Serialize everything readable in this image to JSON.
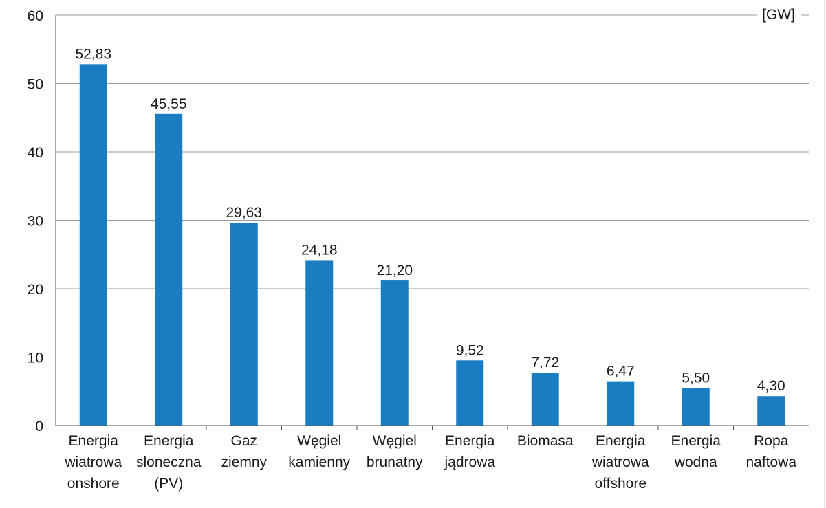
{
  "chart_data": {
    "type": "bar",
    "unit": "[GW]",
    "categories": [
      [
        "Energia",
        "wiatrowa",
        "onshore"
      ],
      [
        "Energia",
        "słoneczna",
        "(PV)"
      ],
      [
        "Gaz",
        "ziemny"
      ],
      [
        "Węgiel",
        "kamienny"
      ],
      [
        "Węgiel",
        "brunatny"
      ],
      [
        "Energia",
        "jądrowa"
      ],
      [
        "Biomasa"
      ],
      [
        "Energia",
        "wiatrowa",
        "offshore"
      ],
      [
        "Energia",
        "wodna"
      ],
      [
        "Ropa",
        "naftowa"
      ]
    ],
    "values": [
      52.83,
      45.55,
      29.63,
      24.18,
      21.2,
      9.52,
      7.72,
      6.47,
      5.5,
      4.3
    ],
    "value_labels": [
      "52,83",
      "45,55",
      "29,63",
      "24,18",
      "21,20",
      "9,52",
      "7,72",
      "6,47",
      "5,50",
      "4,30"
    ],
    "y_ticks": [
      0,
      10,
      20,
      30,
      40,
      50,
      60
    ],
    "ylim": [
      0,
      60
    ],
    "bar_color": "#1a7dc2",
    "grid_color": "#9a9a9a",
    "grid": true
  }
}
